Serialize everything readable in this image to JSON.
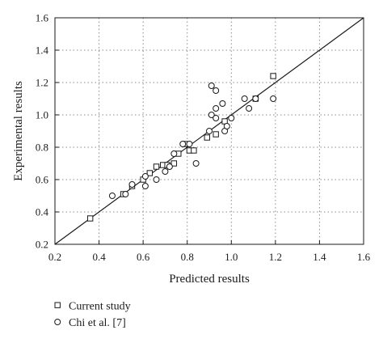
{
  "chart_data": {
    "type": "scatter",
    "xlabel": "Predicted results",
    "ylabel": "Experimental results",
    "xlim": [
      0.2,
      1.6
    ],
    "ylim": [
      0.2,
      1.6
    ],
    "xticks": [
      "0.2",
      "0.4",
      "0.6",
      "0.8",
      "1.0",
      "1.2",
      "1.4",
      "1.6"
    ],
    "yticks": [
      "0.2",
      "0.4",
      "0.6",
      "0.8",
      "1.0",
      "1.2",
      "1.4",
      "1.6"
    ],
    "grid": true,
    "reference_line": {
      "from": [
        0.2,
        0.2
      ],
      "to": [
        1.6,
        1.6
      ]
    },
    "legend_placement": "below",
    "series": [
      {
        "name": "Current study",
        "marker": "square",
        "points": [
          [
            0.36,
            0.36
          ],
          [
            0.51,
            0.51
          ],
          [
            0.55,
            0.56
          ],
          [
            0.6,
            0.6
          ],
          [
            0.63,
            0.64
          ],
          [
            0.66,
            0.68
          ],
          [
            0.69,
            0.69
          ],
          [
            0.71,
            0.69
          ],
          [
            0.74,
            0.7
          ],
          [
            0.76,
            0.76
          ],
          [
            0.79,
            0.82
          ],
          [
            0.81,
            0.78
          ],
          [
            0.83,
            0.78
          ],
          [
            0.89,
            0.86
          ],
          [
            0.93,
            0.88
          ],
          [
            0.97,
            0.96
          ],
          [
            1.11,
            1.1
          ],
          [
            1.19,
            1.24
          ]
        ]
      },
      {
        "name": "Chi et al. [7]",
        "marker": "circle",
        "points": [
          [
            0.46,
            0.5
          ],
          [
            0.52,
            0.51
          ],
          [
            0.55,
            0.57
          ],
          [
            0.61,
            0.56
          ],
          [
            0.61,
            0.62
          ],
          [
            0.66,
            0.6
          ],
          [
            0.7,
            0.65
          ],
          [
            0.72,
            0.68
          ],
          [
            0.74,
            0.76
          ],
          [
            0.78,
            0.82
          ],
          [
            0.81,
            0.82
          ],
          [
            0.84,
            0.7
          ],
          [
            0.9,
            0.9
          ],
          [
            0.91,
            1.0
          ],
          [
            0.91,
            1.18
          ],
          [
            0.93,
            1.15
          ],
          [
            0.93,
            1.04
          ],
          [
            0.93,
            0.98
          ],
          [
            0.96,
            1.07
          ],
          [
            0.97,
            0.9
          ],
          [
            0.98,
            0.93
          ],
          [
            1.0,
            0.98
          ],
          [
            1.06,
            1.1
          ],
          [
            1.08,
            1.04
          ],
          [
            1.11,
            1.1
          ],
          [
            1.19,
            1.1
          ]
        ]
      }
    ]
  }
}
